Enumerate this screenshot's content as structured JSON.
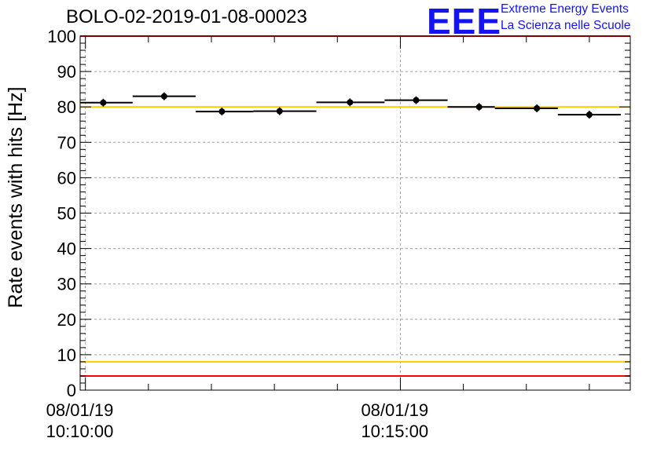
{
  "title": "BOLO-02-2019-01-08-00023",
  "logo": {
    "mark": "EEE",
    "line1": "Extreme Energy Events",
    "line2": "La Scienza nelle Scuole"
  },
  "colors": {
    "axis": "#000000",
    "grid": "#a0a0a0",
    "points": "#000000",
    "red_limit": "#ff0000",
    "yellow_limit": "#ffcc00",
    "logo": "#1414f0"
  },
  "chart_data": {
    "type": "scatter",
    "title": "BOLO-02-2019-01-08-00023",
    "xlabel": "",
    "ylabel": "Rate events with hits [Hz]",
    "ylim": [
      0,
      100
    ],
    "xlim": [
      "2019-01-08 10:09:55",
      "2019-01-08 10:18:39"
    ],
    "y_ticks": [
      0,
      10,
      20,
      30,
      40,
      50,
      60,
      70,
      80,
      90,
      100
    ],
    "x_tick_labels": [
      {
        "time": "2019-01-08 10:10:00",
        "line1": "08/01/19",
        "line2": "10:10:00"
      },
      {
        "time": "2019-01-08 10:15:00",
        "line1": "08/01/19",
        "line2": "10:15:00"
      }
    ],
    "grid": true,
    "series": [
      {
        "points": [
          {
            "x_start": "2019-01-08 10:09:55",
            "x_end": "2019-01-08 10:10:45",
            "x": "2019-01-08 10:10:17",
            "y": 81.2
          },
          {
            "x_start": "2019-01-08 10:10:45",
            "x_end": "2019-01-08 10:11:45",
            "x": "2019-01-08 10:11:15",
            "y": 83.0
          },
          {
            "x_start": "2019-01-08 10:11:45",
            "x_end": "2019-01-08 10:12:40",
            "x": "2019-01-08 10:12:10",
            "y": 78.7
          },
          {
            "x_start": "2019-01-08 10:12:40",
            "x_end": "2019-01-08 10:13:40",
            "x": "2019-01-08 10:13:05",
            "y": 78.8
          },
          {
            "x_start": "2019-01-08 10:13:40",
            "x_end": "2019-01-08 10:14:45",
            "x": "2019-01-08 10:14:12",
            "y": 81.3
          },
          {
            "x_start": "2019-01-08 10:14:45",
            "x_end": "2019-01-08 10:15:45",
            "x": "2019-01-08 10:15:15",
            "y": 81.9
          },
          {
            "x_start": "2019-01-08 10:15:45",
            "x_end": "2019-01-08 10:16:30",
            "x": "2019-01-08 10:16:15",
            "y": 80.0
          },
          {
            "x_start": "2019-01-08 10:16:30",
            "x_end": "2019-01-08 10:17:30",
            "x": "2019-01-08 10:17:10",
            "y": 79.6
          },
          {
            "x_start": "2019-01-08 10:17:30",
            "x_end": "2019-01-08 10:18:30",
            "x": "2019-01-08 10:18:00",
            "y": 77.8
          }
        ]
      }
    ],
    "reference_lines": [
      {
        "y": 100,
        "color": "#ff0000"
      },
      {
        "y": 80,
        "color": "#ffcc00"
      },
      {
        "y": 8,
        "color": "#ffcc00"
      },
      {
        "y": 4,
        "color": "#ff0000"
      }
    ]
  }
}
